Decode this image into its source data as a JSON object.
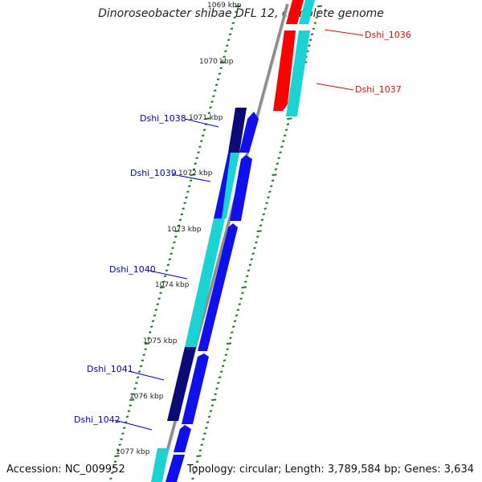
{
  "title": "Dinoroseobacter shibae DFL 12, complete genome",
  "accession": "Accession: NC_009952",
  "summary": "Topology: circular; Length: 3,789,584 bp; Genes: 3,634",
  "kbp_labels": [
    "1069 kbp",
    "1070 kbp",
    "1071 kbp",
    "1072 kbp",
    "1073 kbp",
    "1074 kbp",
    "1075 kbp",
    "1076 kbp",
    "1077 kbp"
  ],
  "gene_labels": [
    {
      "name": "Dshi_1036",
      "color": "#ff0000"
    },
    {
      "name": "Dshi_1037",
      "color": "#ff0000"
    },
    {
      "name": "Dshi_1038",
      "color": "#0000cc"
    },
    {
      "name": "Dshi_1039",
      "color": "#0000cc"
    },
    {
      "name": "Dshi_1040",
      "color": "#0000cc"
    },
    {
      "name": "Dshi_1041",
      "color": "#0000cc"
    },
    {
      "name": "Dshi_1042",
      "color": "#0000cc"
    }
  ],
  "colors": {
    "red": "#ff0000",
    "cyan": "#1ad4d4",
    "blue": "#1010ee",
    "navy": "#0b0b78",
    "tick": "#1a7a1a",
    "backbone": "#8c8c8c"
  }
}
